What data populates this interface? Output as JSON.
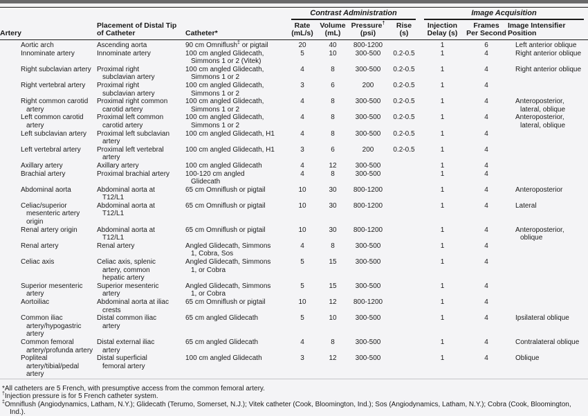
{
  "page": {
    "background": "#f4f4f6",
    "top_bar_color": "#69696b",
    "rule_color": "#1a1a1a",
    "text_color": "#1a1a1a"
  },
  "table": {
    "group_headers": [
      {
        "label": "Contrast Administration"
      },
      {
        "label": "Image Acquisition"
      }
    ],
    "columns": [
      {
        "id": "artery",
        "lines": [
          "Artery"
        ]
      },
      {
        "id": "placement",
        "lines": [
          "Placement of Distal Tip",
          "of Catheter"
        ]
      },
      {
        "id": "catheter",
        "lines": [
          "Catheter*"
        ]
      },
      {
        "id": "rate",
        "lines": [
          "Rate",
          "(mL/s)"
        ]
      },
      {
        "id": "volume",
        "lines": [
          "Volume",
          "(mL)"
        ]
      },
      {
        "id": "pressure",
        "lines": [
          "Pressure†",
          "(psi)"
        ]
      },
      {
        "id": "rise",
        "lines": [
          "Rise",
          "(s)"
        ]
      },
      {
        "id": "injection-delay",
        "lines": [
          "Injection",
          "Delay (s)"
        ]
      },
      {
        "id": "frames-per-second",
        "lines": [
          "Frames",
          "Per Second"
        ]
      },
      {
        "id": "image-intensifier-position",
        "lines": [
          "Image Intensifier",
          "Position"
        ]
      }
    ],
    "rows": [
      {
        "artery": "Aortic arch",
        "placement": "Ascending aorta",
        "catheter": "90 cm Omniflush‡ or pigtail",
        "rate": "20",
        "volume": "40",
        "pressure": "800-1200",
        "rise": "",
        "delay": "1",
        "fps": "6",
        "position": "Left anterior oblique"
      },
      {
        "artery": "Innominate artery",
        "placement": "Innominate artery",
        "catheter": "100 cm angled Glidecath, Simmons 1 or 2 (Vitek)",
        "rate": "5",
        "volume": "10",
        "pressure": "300-500",
        "rise": "0.2-0.5",
        "delay": "1",
        "fps": "4",
        "position": "Right anterior oblique"
      },
      {
        "artery": "Right subclavian artery",
        "placement": "Proximal right subclavian artery",
        "catheter": "100 cm angled Glidecath, Simmons 1 or 2",
        "rate": "4",
        "volume": "8",
        "pressure": "300-500",
        "rise": "0.2-0.5",
        "delay": "1",
        "fps": "4",
        "position": "Right anterior oblique"
      },
      {
        "artery": "Right vertebral artery",
        "placement": "Proximal right subclavian artery",
        "catheter": "100 cm angled Glidecath, Simmons 1 or 2",
        "rate": "3",
        "volume": "6",
        "pressure": "200",
        "rise": "0.2-0.5",
        "delay": "1",
        "fps": "4",
        "position": ""
      },
      {
        "artery": "Right common carotid artery",
        "placement": "Proximal right common carotid artery",
        "catheter": "100 cm angled Glidecath, Simmons 1 or 2",
        "rate": "4",
        "volume": "8",
        "pressure": "300-500",
        "rise": "0.2-0.5",
        "delay": "1",
        "fps": "4",
        "position": "Anteroposterior, lateral, oblique"
      },
      {
        "artery": "Left common carotid artery",
        "placement": "Proximal left common carotid artery",
        "catheter": "100 cm angled Glidecath, Simmons 1 or 2",
        "rate": "4",
        "volume": "8",
        "pressure": "300-500",
        "rise": "0.2-0.5",
        "delay": "1",
        "fps": "4",
        "position": "Anteroposterior, lateral, oblique"
      },
      {
        "artery": "Left subclavian artery",
        "placement": "Proximal left subclavian artery",
        "catheter": "100 cm angled Glidecath, H1",
        "rate": "4",
        "volume": "8",
        "pressure": "300-500",
        "rise": "0.2-0.5",
        "delay": "1",
        "fps": "4",
        "position": ""
      },
      {
        "artery": "Left vertebral artery",
        "placement": "Proximal left vertebral artery",
        "catheter": "100 cm angled Glidecath, H1",
        "rate": "3",
        "volume": "6",
        "pressure": "200",
        "rise": "0.2-0.5",
        "delay": "1",
        "fps": "4",
        "position": ""
      },
      {
        "artery": "Axillary artery",
        "placement": "Axillary artery",
        "catheter": "100 cm angled Glidecath",
        "rate": "4",
        "volume": "12",
        "pressure": "300-500",
        "rise": "",
        "delay": "1",
        "fps": "4",
        "position": ""
      },
      {
        "artery": "Brachial artery",
        "placement": "Proximal brachial artery",
        "catheter": "100-120 cm angled Glidecath",
        "rate": "4",
        "volume": "8",
        "pressure": "300-500",
        "rise": "",
        "delay": "1",
        "fps": "4",
        "position": ""
      },
      {
        "artery": "Abdominal aorta",
        "placement": "Abdominal aorta at T12/L1",
        "catheter": "65 cm Omniflush or pigtail",
        "rate": "10",
        "volume": "30",
        "pressure": "800-1200",
        "rise": "",
        "delay": "1",
        "fps": "4",
        "position": "Anteroposterior"
      },
      {
        "artery": "Celiac/superior mesenteric artery origin",
        "placement": "Abdominal aorta at T12/L1",
        "catheter": "65 cm Omniflush or pigtail",
        "rate": "10",
        "volume": "30",
        "pressure": "800-1200",
        "rise": "",
        "delay": "1",
        "fps": "4",
        "position": "Lateral"
      },
      {
        "artery": "Renal artery origin",
        "placement": "Abdominal aorta at T12/L1",
        "catheter": "65 cm Omniflush or pigtail",
        "rate": "10",
        "volume": "30",
        "pressure": "800-1200",
        "rise": "",
        "delay": "1",
        "fps": "4",
        "position": "Anteroposterior, oblique"
      },
      {
        "artery": "Renal artery",
        "placement": "Renal artery",
        "catheter": "Angled Glidecath, Simmons 1, Cobra, Sos",
        "rate": "4",
        "volume": "8",
        "pressure": "300-500",
        "rise": "",
        "delay": "1",
        "fps": "4",
        "position": ""
      },
      {
        "artery": "Celiac axis",
        "placement": "Celiac axis, splenic artery, common hepatic artery",
        "catheter": "Angled Glidecath, Simmons 1, or Cobra",
        "rate": "5",
        "volume": "15",
        "pressure": "300-500",
        "rise": "",
        "delay": "1",
        "fps": "4",
        "position": ""
      },
      {
        "artery": "Superior mesenteric artery",
        "placement": "Superior mesenteric artery",
        "catheter": "Angled Glidecath, Simmons 1, or Cobra",
        "rate": "5",
        "volume": "15",
        "pressure": "300-500",
        "rise": "",
        "delay": "1",
        "fps": "4",
        "position": ""
      },
      {
        "artery": "Aortoiliac",
        "placement": "Abdominal aorta at iliac crests",
        "catheter": "65 cm Omniflush or pigtail",
        "rate": "10",
        "volume": "12",
        "pressure": "800-1200",
        "rise": "",
        "delay": "1",
        "fps": "4",
        "position": ""
      },
      {
        "artery": "Common iliac artery/hypogastric artery",
        "placement": "Distal common iliac artery",
        "catheter": "65 cm angled Glidecath",
        "rate": "5",
        "volume": "10",
        "pressure": "300-500",
        "rise": "",
        "delay": "1",
        "fps": "4",
        "position": "Ipsilateral oblique"
      },
      {
        "artery": "Common femoral artery/profunda artery",
        "placement": "Distal external iliac artery",
        "catheter": "65 cm angled Glidecath",
        "rate": "4",
        "volume": "8",
        "pressure": "300-500",
        "rise": "",
        "delay": "1",
        "fps": "4",
        "position": "Contralateral oblique"
      },
      {
        "artery": "Popliteal artery/tibial/pedal artery",
        "placement": "Distal superficial femoral artery",
        "catheter": "100 cm angled Glidecath",
        "rate": "3",
        "volume": "12",
        "pressure": "300-500",
        "rise": "",
        "delay": "1",
        "fps": "4",
        "position": "Oblique"
      }
    ]
  },
  "footnotes": [
    "*All catheters are 5 French, with presumptive access from the common femoral artery.",
    "†Injection pressure is for 5 French catheter system.",
    "‡Omniflush (Angiodynamics, Latham, N.Y.); Glidecath (Terumo, Somerset, N.J.); Vitek catheter (Cook, Bloomington, Ind.); Sos (Angiodynamics, Latham, N.Y.); Cobra (Cook, Bloomington, Ind.)."
  ]
}
